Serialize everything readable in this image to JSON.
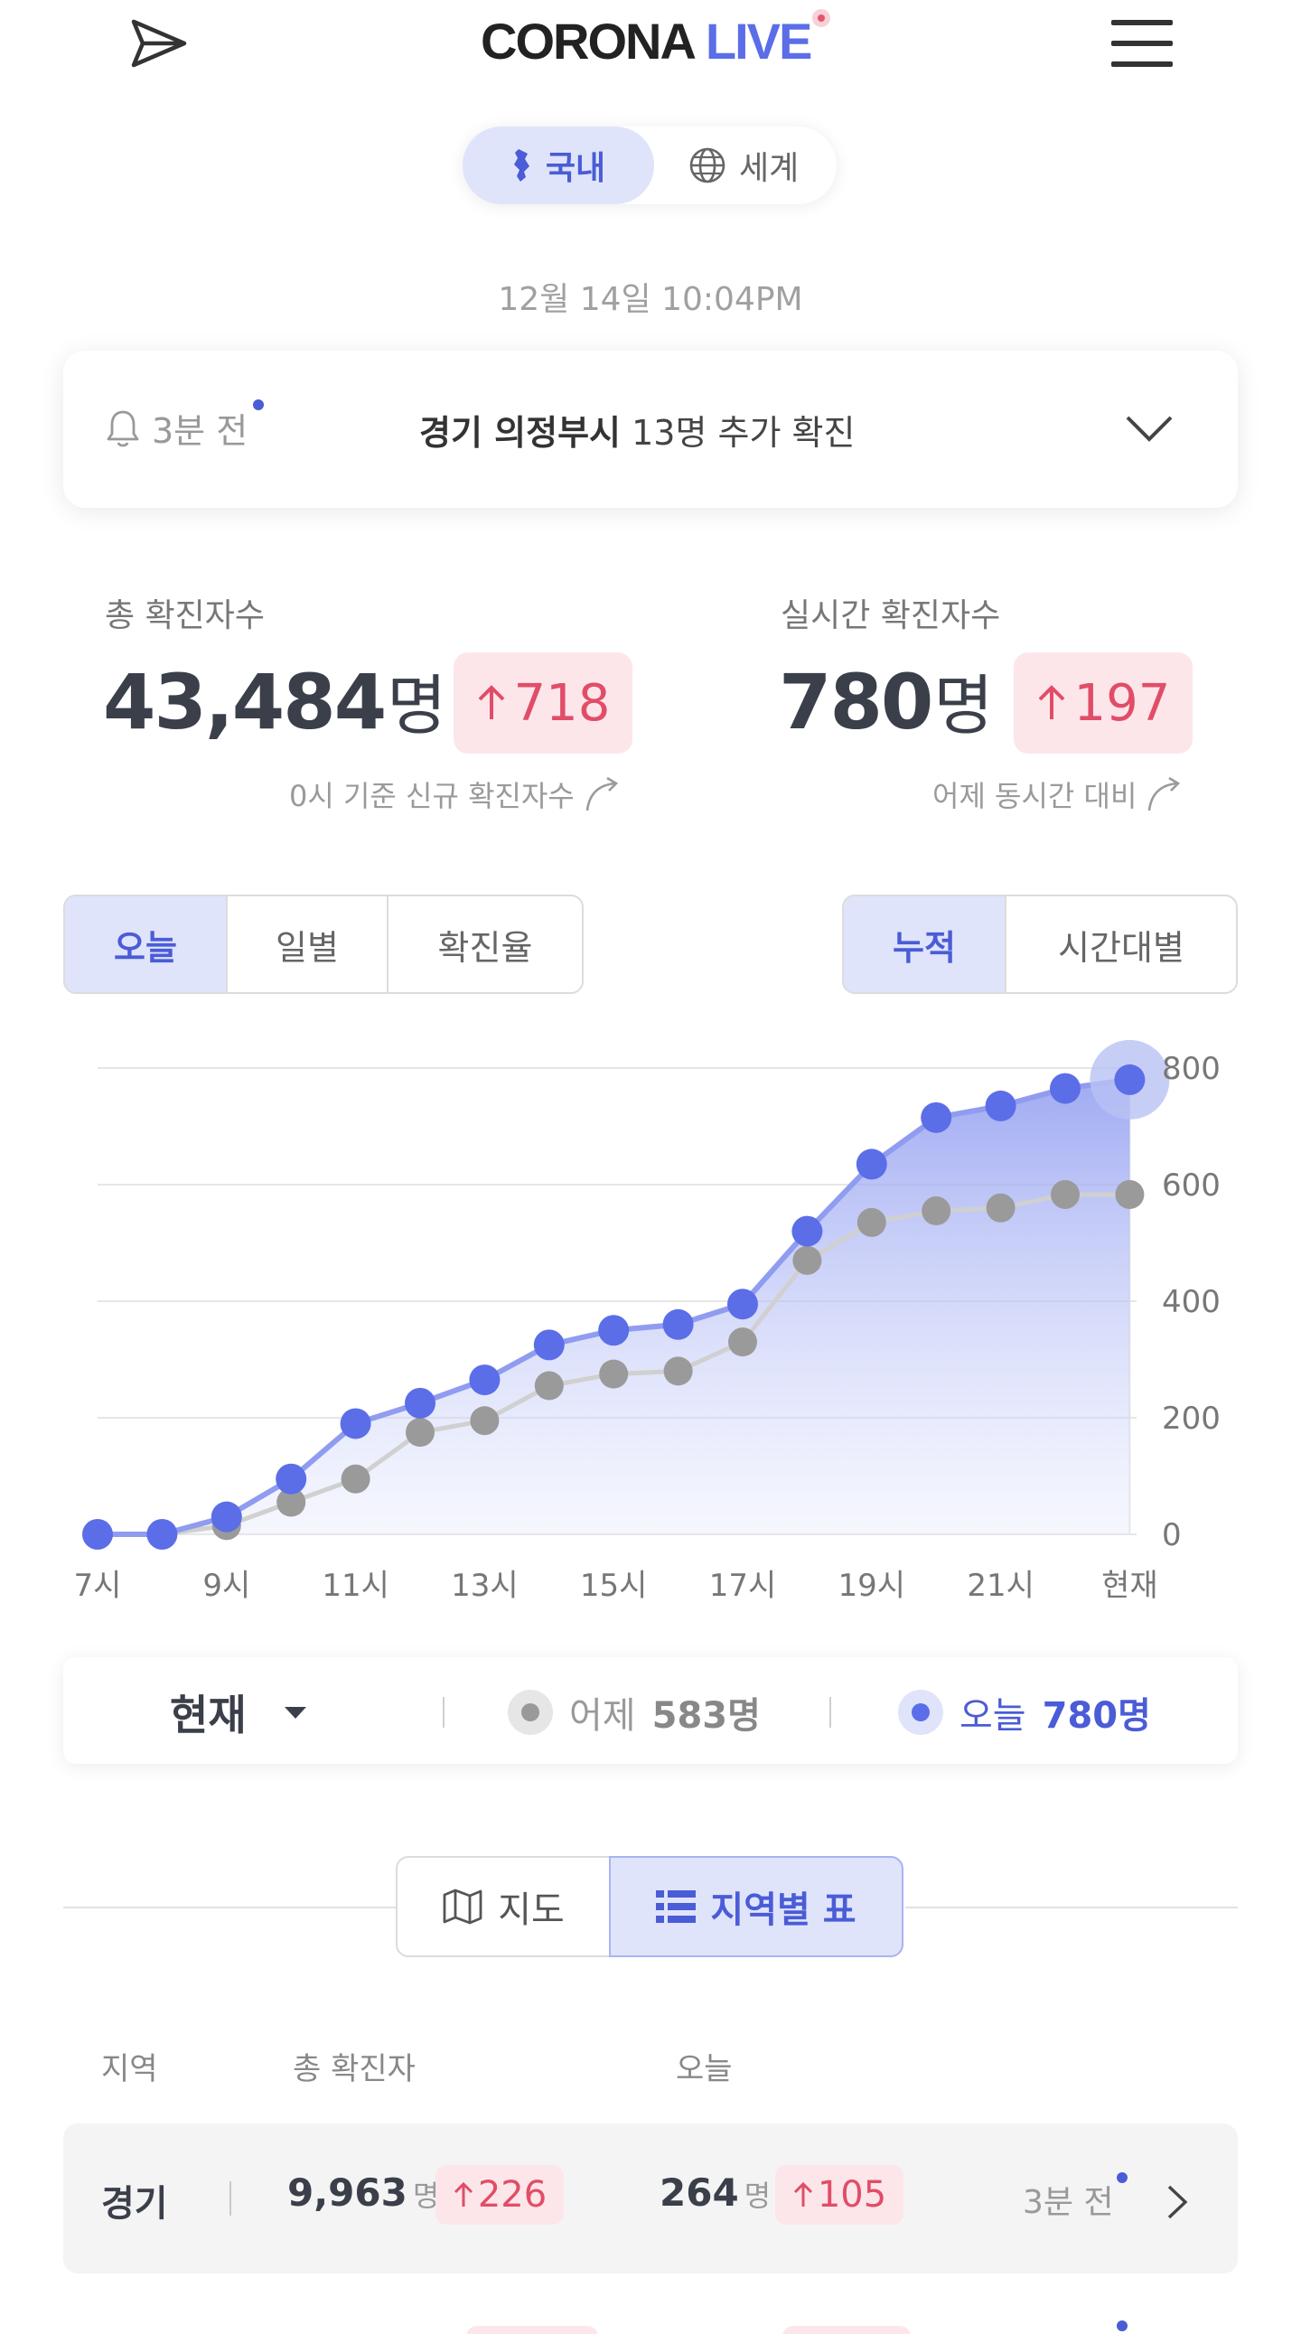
{
  "header": {
    "logo_main": "CORONA",
    "logo_accent": "LIVE"
  },
  "region_toggle": {
    "domestic": "국내",
    "world": "세계"
  },
  "timestamp": "12월 14일 10:04PM",
  "notice": {
    "time": "3분 전",
    "location": "경기 의정부시",
    "text": "13명 추가 확진"
  },
  "stats": {
    "total": {
      "label": "총 확진자수",
      "value": "43,484",
      "unit": "명",
      "delta": "718",
      "note": "0시 기준 신규 확진자수"
    },
    "realtime": {
      "label": "실시간 확진자수",
      "value": "780",
      "unit": "명",
      "delta": "197",
      "note": "어제 동시간 대비"
    }
  },
  "tabs_left": [
    "오늘",
    "일별",
    "확진율"
  ],
  "tabs_right": [
    "누적",
    "시간대별"
  ],
  "chart_data": {
    "type": "line",
    "x": [
      "7시",
      "8시",
      "9시",
      "10시",
      "11시",
      "12시",
      "13시",
      "14시",
      "15시",
      "16시",
      "17시",
      "18시",
      "19시",
      "20시",
      "21시",
      "22시",
      "현재"
    ],
    "x_tick_labels": [
      "7시",
      "9시",
      "11시",
      "13시",
      "15시",
      "17시",
      "19시",
      "21시",
      "현재"
    ],
    "y_ticks": [
      "0",
      "200",
      "400",
      "600",
      "800"
    ],
    "ylim": [
      0,
      800
    ],
    "series": [
      {
        "name": "어제",
        "color": "#9a9a9a",
        "values": [
          0,
          0,
          15,
          55,
          95,
          175,
          195,
          255,
          275,
          280,
          330,
          470,
          535,
          555,
          560,
          583,
          583
        ]
      },
      {
        "name": "오늘",
        "color": "#5b6ee8",
        "values": [
          0,
          0,
          30,
          95,
          190,
          225,
          265,
          325,
          350,
          360,
          395,
          520,
          635,
          715,
          735,
          765,
          780
        ]
      }
    ],
    "grid": true
  },
  "legend": {
    "period": "현재",
    "yesterday_label": "어제",
    "yesterday_value": "583명",
    "today_label": "오늘",
    "today_value": "780명",
    "yesterday_color": "#9a9a9a",
    "today_color": "#5b6ee8"
  },
  "view_toggle": {
    "map": "지도",
    "table": "지역별 표"
  },
  "table": {
    "headers": [
      "지역",
      "총 확진자",
      "오늘"
    ],
    "rows": [
      {
        "region": "경기",
        "total": "9,963",
        "total_unit": "명",
        "total_delta": "226",
        "today": "264",
        "today_unit": "명",
        "today_delta": "105",
        "updated": "3분 전"
      }
    ]
  }
}
